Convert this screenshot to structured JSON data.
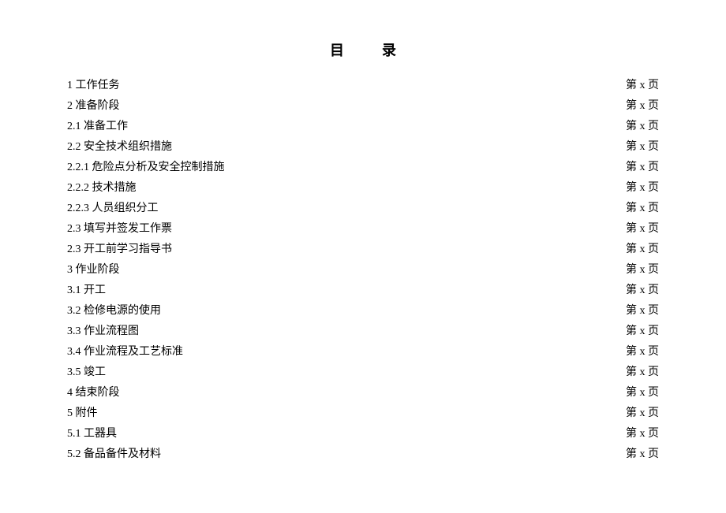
{
  "title": "目录",
  "page_label": "第 x 页",
  "colors": {
    "background": "#ffffff",
    "text": "#000000"
  },
  "typography": {
    "title_fontsize": 18,
    "body_fontsize": 14,
    "line_height": 26,
    "font_family": "SimSun"
  },
  "entries": [
    {
      "number": "1",
      "label": "工作任务"
    },
    {
      "number": "2",
      "label": "准备阶段"
    },
    {
      "number": "2.1",
      "label": "准备工作"
    },
    {
      "number": "2.2",
      "label": "安全技术组织措施"
    },
    {
      "number": "2.2.1",
      "label": "危险点分析及安全控制措施"
    },
    {
      "number": "2.2.2",
      "label": "技术措施"
    },
    {
      "number": "2.2.3",
      "label": "人员组织分工"
    },
    {
      "number": "2.3",
      "label": "填写并签发工作票"
    },
    {
      "number": "2.3",
      "label": "开工前学习指导书"
    },
    {
      "number": "3",
      "label": "作业阶段"
    },
    {
      "number": "3.1",
      "label": "开工"
    },
    {
      "number": "3.2",
      "label": "检修电源的使用"
    },
    {
      "number": "3.3",
      "label": "作业流程图"
    },
    {
      "number": "3.4",
      "label": "作业流程及工艺标准"
    },
    {
      "number": "3.5",
      "label": "竣工"
    },
    {
      "number": "4",
      "label": "结束阶段"
    },
    {
      "number": "5",
      "label": "附件"
    },
    {
      "number": "5.1",
      "label": "工器具"
    },
    {
      "number": "5.2",
      "label": "备品备件及材料"
    }
  ]
}
